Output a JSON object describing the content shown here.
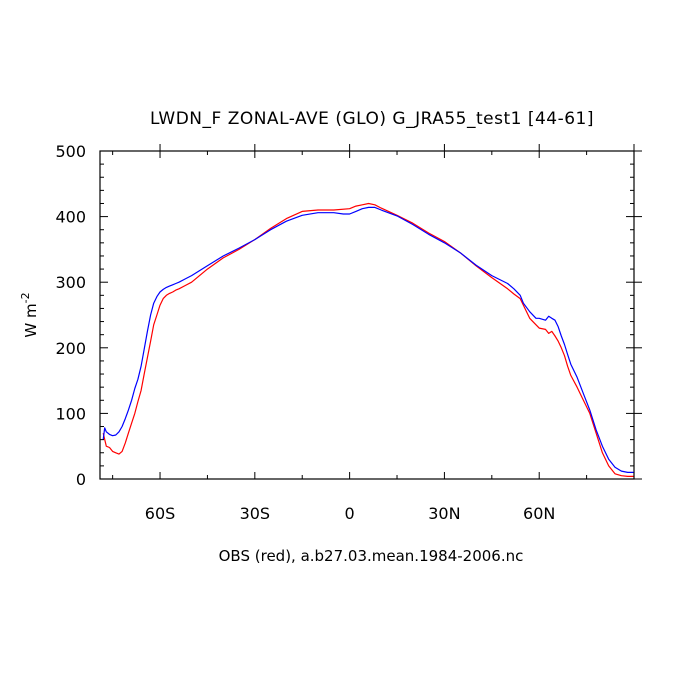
{
  "chart_data": {
    "type": "line",
    "title": "LWDN_F ZONAL-AVE (GLO) G_JRA55_test1 [44-61]",
    "xlabel": "OBS (red), a.b27.03.mean.1984-2006.nc",
    "ylabel": "W m",
    "ylabel_superscript": "-2",
    "xlim": [
      -79,
      90
    ],
    "ylim": [
      0,
      500
    ],
    "xticks": [
      {
        "value": -60,
        "label": "60S"
      },
      {
        "value": -30,
        "label": "30S"
      },
      {
        "value": 0,
        "label": "0"
      },
      {
        "value": 30,
        "label": "30N"
      },
      {
        "value": 60,
        "label": "60N"
      }
    ],
    "yticks": [
      0,
      100,
      200,
      300,
      400,
      500
    ],
    "grid": false,
    "series": [
      {
        "color": "#ff0000",
        "x": [
          -78,
          -77,
          -76,
          -75,
          -74,
          -73,
          -72,
          -71,
          -70,
          -69,
          -68,
          -67,
          -66,
          -65,
          -64,
          -63,
          -62,
          -61,
          -60,
          -59,
          -58,
          -57,
          -56,
          -55,
          -54,
          -52,
          -50,
          -45,
          -40,
          -35,
          -30,
          -25,
          -20,
          -15,
          -10,
          -5,
          0,
          2,
          4,
          6,
          8,
          10,
          15,
          20,
          25,
          30,
          35,
          40,
          45,
          50,
          52,
          54,
          55,
          57,
          59,
          60,
          62,
          63,
          64,
          65,
          66,
          67,
          68,
          69,
          70,
          72,
          74,
          76,
          78,
          80,
          82,
          84,
          86,
          88,
          90
        ],
        "y": [
          70,
          50,
          48,
          42,
          40,
          38,
          42,
          55,
          70,
          85,
          100,
          118,
          135,
          160,
          185,
          210,
          235,
          250,
          265,
          275,
          280,
          283,
          285,
          288,
          290,
          295,
          300,
          320,
          337,
          350,
          365,
          382,
          397,
          408,
          410,
          410,
          412,
          416,
          418,
          420,
          418,
          413,
          402,
          390,
          375,
          362,
          345,
          325,
          307,
          290,
          282,
          275,
          265,
          245,
          235,
          230,
          228,
          222,
          225,
          218,
          210,
          200,
          188,
          172,
          158,
          140,
          120,
          100,
          70,
          40,
          20,
          8,
          5,
          4,
          4
        ]
      },
      {
        "color": "#0000ff",
        "x": [
          -78,
          -77.5,
          -77,
          -76,
          -75,
          -74,
          -73,
          -72,
          -71,
          -70,
          -69,
          -68,
          -67,
          -66,
          -65,
          -64,
          -63,
          -62,
          -61,
          -60,
          -59,
          -58,
          -57,
          -56,
          -55,
          -54,
          -52,
          -50,
          -45,
          -40,
          -35,
          -30,
          -25,
          -20,
          -15,
          -10,
          -5,
          -2,
          0,
          2,
          4,
          6,
          8,
          10,
          15,
          20,
          25,
          30,
          35,
          40,
          45,
          50,
          52,
          54,
          55,
          57,
          59,
          60,
          62,
          63,
          64,
          65,
          66,
          67,
          68,
          69,
          70,
          72,
          74,
          76,
          78,
          80,
          82,
          84,
          86,
          88,
          90
        ],
        "y": [
          60,
          78,
          72,
          68,
          66,
          67,
          72,
          80,
          92,
          105,
          120,
          138,
          152,
          172,
          198,
          225,
          250,
          268,
          278,
          285,
          289,
          292,
          294,
          296,
          298,
          300,
          305,
          310,
          325,
          340,
          352,
          365,
          380,
          393,
          402,
          406,
          406,
          404,
          404,
          408,
          412,
          414,
          414,
          410,
          401,
          388,
          373,
          360,
          345,
          326,
          310,
          298,
          290,
          280,
          268,
          255,
          245,
          245,
          242,
          248,
          245,
          242,
          232,
          218,
          205,
          190,
          175,
          155,
          130,
          105,
          75,
          50,
          30,
          18,
          12,
          10,
          10
        ]
      }
    ]
  }
}
